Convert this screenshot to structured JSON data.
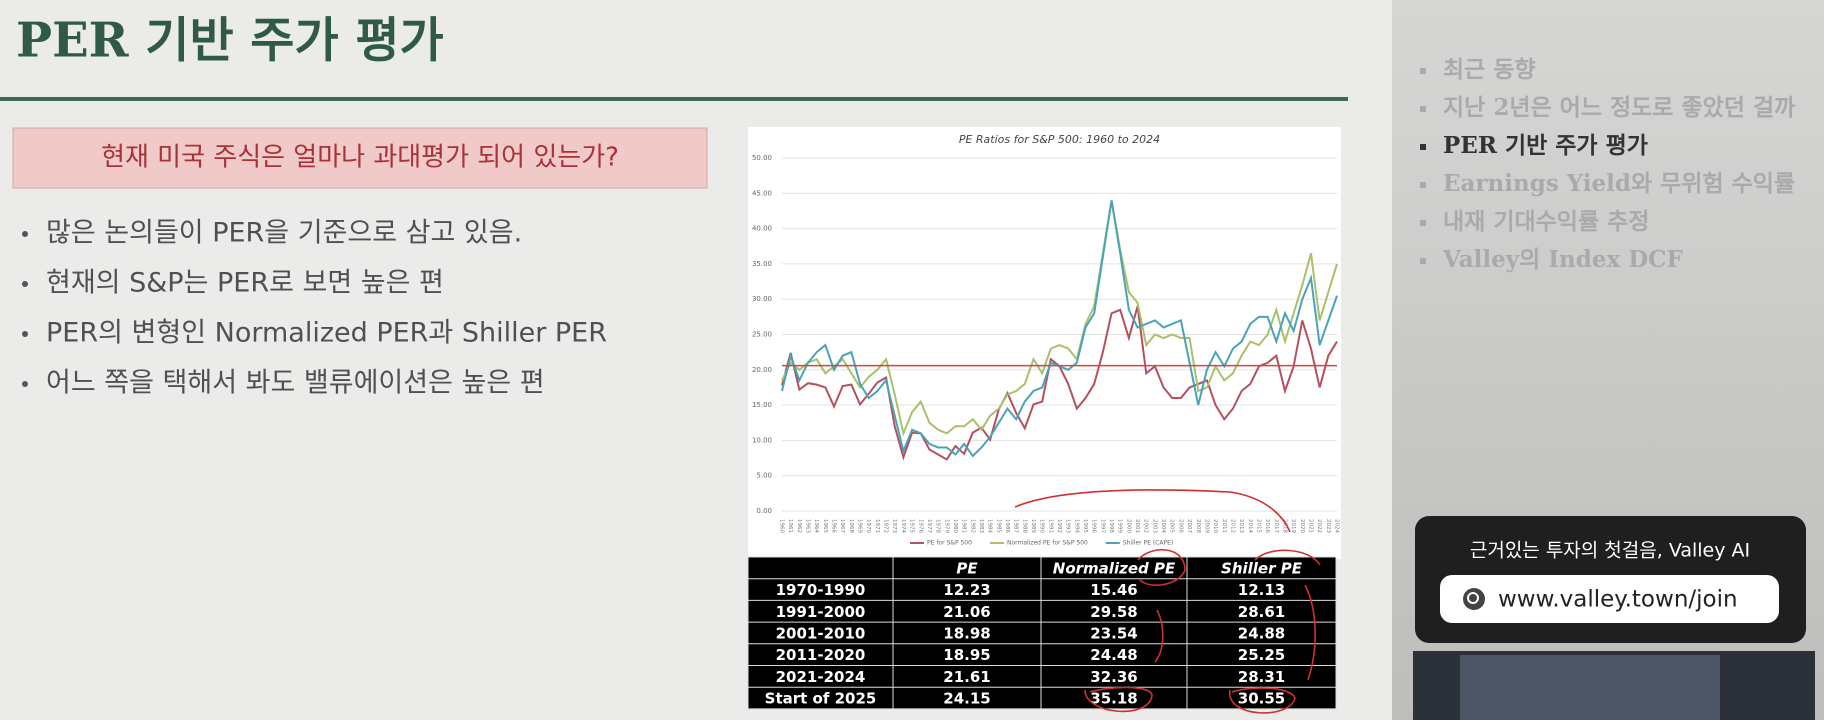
{
  "slide": {
    "title": "PER 기반 주가 평가",
    "question": "현재 미국 주식은 얼마나 과대평가 되어 있는가?",
    "bullets": [
      "많은 논의들이 PER을 기준으로 삼고 있음.",
      "현재의 S&P는 PER로 보면 높은 편",
      "PER의 변형인 Normalized PER과 Shiller PER",
      "어느 쪽을 택해서 봐도 밸류에이션은 높은 편"
    ]
  },
  "chart_data": {
    "type": "line",
    "title": "PE Ratios for S&P 500: 1960 to 2024",
    "x": [
      1960,
      1961,
      1962,
      1963,
      1964,
      1965,
      1966,
      1967,
      1968,
      1969,
      1970,
      1971,
      1972,
      1973,
      1974,
      1975,
      1976,
      1977,
      1978,
      1979,
      1980,
      1981,
      1982,
      1983,
      1984,
      1985,
      1986,
      1987,
      1988,
      1989,
      1990,
      1991,
      1992,
      1993,
      1994,
      1995,
      1996,
      1997,
      1998,
      1999,
      2000,
      2001,
      2002,
      2003,
      2004,
      2005,
      2006,
      2007,
      2008,
      2009,
      2010,
      2011,
      2012,
      2013,
      2014,
      2015,
      2016,
      2017,
      2018,
      2019,
      2020,
      2021,
      2022,
      2023,
      2024
    ],
    "xlim": [
      1960,
      2024
    ],
    "ylim": [
      0,
      50
    ],
    "yticks": [
      {
        "value": 0,
        "label": "0.00"
      },
      {
        "value": 5,
        "label": "5.00"
      },
      {
        "value": 10,
        "label": "10.00"
      },
      {
        "value": 15,
        "label": "15.00"
      },
      {
        "value": 20,
        "label": "20.00"
      },
      {
        "value": 25,
        "label": "25.00"
      },
      {
        "value": 30,
        "label": "30.00"
      },
      {
        "value": 35,
        "label": "35.00"
      },
      {
        "value": 40,
        "label": "40.00"
      },
      {
        "value": 45,
        "label": "45.00"
      },
      {
        "value": 50,
        "label": "50.00"
      }
    ],
    "grid": true,
    "reference_line": {
      "value": 20.6,
      "color": "#d24545"
    },
    "series": [
      {
        "name": "PE for S&P 500",
        "color": "#b5505f",
        "values": [
          17.8,
          22.4,
          17.2,
          18.1,
          17.9,
          17.5,
          14.8,
          17.7,
          17.9,
          15.1,
          16.6,
          18.2,
          18.9,
          12.0,
          7.6,
          11.1,
          11.0,
          8.7,
          8.0,
          7.3,
          9.2,
          8.1,
          11.1,
          11.8,
          10.1,
          14.4,
          16.7,
          13.9,
          11.7,
          15.1,
          15.5,
          21.5,
          20.5,
          18.0,
          14.5,
          16.0,
          18.0,
          22.5,
          28.0,
          28.5,
          24.5,
          29.0,
          19.5,
          20.5,
          17.5,
          16.0,
          16.0,
          17.5,
          18.0,
          18.5,
          15.0,
          13.0,
          14.5,
          17.0,
          18.0,
          20.5,
          21.0,
          22.0,
          17.0,
          20.5,
          27.0,
          23.0,
          17.5,
          22.0,
          24.0
        ]
      },
      {
        "name": "Normalized PE for S&P 500",
        "color": "#a9c16a",
        "values": [
          18.5,
          21.0,
          20.0,
          21.0,
          21.5,
          19.5,
          20.5,
          21.5,
          19.5,
          17.5,
          19.0,
          20.0,
          21.5,
          16.5,
          11.0,
          14.0,
          15.5,
          12.5,
          11.5,
          11.0,
          12.0,
          12.0,
          13.0,
          11.5,
          13.5,
          14.5,
          16.5,
          17.0,
          18.0,
          21.5,
          19.5,
          23.0,
          23.5,
          23.0,
          21.5,
          26.5,
          29.0,
          36.5,
          44.0,
          37.0,
          31.0,
          29.5,
          23.5,
          25.0,
          24.5,
          25.0,
          24.5,
          24.5,
          17.0,
          17.5,
          20.5,
          18.5,
          19.5,
          22.0,
          24.0,
          23.5,
          25.0,
          28.5,
          24.0,
          28.0,
          32.0,
          36.5,
          27.0,
          31.0,
          35.0
        ]
      },
      {
        "name": "Shiller PE (CAPE)",
        "color": "#4aa3b8",
        "values": [
          17.0,
          22.0,
          18.5,
          21.0,
          22.5,
          23.5,
          20.0,
          22.0,
          22.5,
          18.0,
          16.0,
          17.0,
          18.5,
          13.5,
          8.5,
          11.5,
          11.0,
          9.5,
          9.0,
          9.0,
          8.0,
          9.5,
          7.8,
          9.0,
          10.5,
          12.5,
          14.5,
          13.0,
          15.5,
          17.0,
          17.5,
          21.0,
          20.5,
          20.0,
          21.0,
          26.0,
          28.0,
          36.0,
          44.0,
          36.5,
          28.5,
          26.0,
          26.5,
          27.0,
          26.0,
          26.5,
          27.0,
          21.0,
          15.0,
          20.0,
          22.5,
          20.5,
          23.0,
          24.0,
          26.5,
          27.5,
          27.5,
          24.0,
          28.0,
          25.5,
          30.0,
          33.0,
          23.5,
          27.0,
          30.5
        ]
      }
    ]
  },
  "table": {
    "columns": [
      "PE",
      "Normalized PE",
      "Shiller PE"
    ],
    "rows": [
      {
        "label": "1970-1990",
        "values": [
          12.23,
          15.46,
          12.13
        ]
      },
      {
        "label": "1991-2000",
        "values": [
          21.06,
          29.58,
          28.61
        ]
      },
      {
        "label": "2001-2010",
        "values": [
          18.98,
          23.54,
          24.88
        ]
      },
      {
        "label": "2011-2020",
        "values": [
          18.95,
          24.48,
          25.25
        ]
      },
      {
        "label": "2021-2024",
        "values": [
          21.61,
          32.36,
          28.31
        ]
      },
      {
        "label": "Start of 2025",
        "values": [
          24.15,
          35.18,
          30.55
        ]
      }
    ]
  },
  "sidebar": {
    "items": [
      "최근 동향",
      "지난 2년은 어느 정도로 좋았던 걸까",
      "PER 기반 주가 평가",
      "Earnings Yield와 무위험 수익률",
      "내재 기대수익률 추정",
      "Valley의 Index DCF"
    ],
    "active_index": 2
  },
  "ad": {
    "headline": "근거있는 투자의 첫걸음, Valley AI",
    "url": "www.valley.town/join"
  }
}
